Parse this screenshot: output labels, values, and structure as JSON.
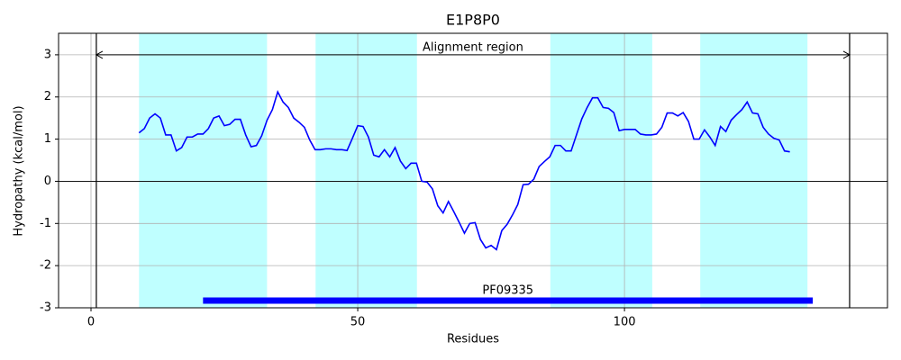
{
  "chart_data": {
    "type": "line",
    "title": "E1P8P0",
    "x_label": "Residues",
    "y_label": "Hydropathy (kcal/mol)",
    "xlim": [
      -6.08,
      149.3
    ],
    "ylim": [
      -3,
      3.51
    ],
    "xticks": [
      0,
      50,
      100
    ],
    "yticks": [
      -3,
      -2,
      -1,
      0,
      1,
      2,
      3
    ],
    "grid": true,
    "x": [
      9,
      10,
      11,
      12,
      13,
      14,
      15,
      16,
      17,
      18,
      19,
      20,
      21,
      22,
      23,
      24,
      25,
      26,
      27,
      28,
      29,
      30,
      31,
      32,
      33,
      34,
      35,
      36,
      37,
      38,
      39,
      40,
      41,
      42,
      43,
      44,
      45,
      46,
      47,
      48,
      49,
      50,
      51,
      52,
      53,
      54,
      55,
      56,
      57,
      58,
      59,
      60,
      61,
      62,
      63,
      64,
      65,
      66,
      67,
      68,
      69,
      70,
      71,
      72,
      73,
      74,
      75,
      76,
      77,
      78,
      79,
      80,
      81,
      82,
      83,
      84,
      85,
      86,
      87,
      88,
      89,
      90,
      91,
      92,
      93,
      94,
      95,
      96,
      97,
      98,
      99,
      100,
      101,
      102,
      103,
      104,
      105,
      106,
      107,
      108,
      109,
      110,
      111,
      112,
      113,
      114,
      115,
      116,
      117,
      118,
      119,
      120,
      121,
      122,
      123,
      124,
      125,
      126,
      127,
      128,
      129,
      130,
      131
    ],
    "values": [
      1.15,
      1.25,
      1.5,
      1.6,
      1.5,
      1.1,
      1.1,
      0.72,
      0.8,
      1.05,
      1.05,
      1.12,
      1.12,
      1.25,
      1.5,
      1.55,
      1.32,
      1.35,
      1.47,
      1.47,
      1.1,
      0.82,
      0.85,
      1.08,
      1.45,
      1.7,
      2.12,
      1.88,
      1.75,
      1.5,
      1.4,
      1.28,
      0.98,
      0.75,
      0.75,
      0.77,
      0.77,
      0.75,
      0.75,
      0.73,
      1.02,
      1.32,
      1.3,
      1.05,
      0.62,
      0.58,
      0.75,
      0.58,
      0.8,
      0.48,
      0.3,
      0.43,
      0.43,
      0.0,
      -0.02,
      -0.18,
      -0.58,
      -0.75,
      -0.48,
      -0.72,
      -0.97,
      -1.23,
      -1.0,
      -0.98,
      -1.38,
      -1.58,
      -1.52,
      -1.62,
      -1.17,
      -1.02,
      -0.8,
      -0.55,
      -0.08,
      -0.07,
      0.05,
      0.35,
      0.47,
      0.58,
      0.85,
      0.85,
      0.72,
      0.72,
      1.1,
      1.48,
      1.75,
      1.98,
      1.98,
      1.75,
      1.73,
      1.63,
      1.2,
      1.23,
      1.23,
      1.23,
      1.12,
      1.1,
      1.1,
      1.12,
      1.28,
      1.62,
      1.62,
      1.55,
      1.63,
      1.42,
      1.0,
      1.0,
      1.22,
      1.05,
      0.85,
      1.3,
      1.18,
      1.45,
      1.58,
      1.7,
      1.88,
      1.62,
      1.6,
      1.28,
      1.12,
      1.02,
      0.98,
      0.72,
      0.7
    ],
    "color": "#0000ff",
    "shaded_regions": [
      [
        9,
        33
      ],
      [
        42.1,
        61.1
      ],
      [
        86.1,
        105.2
      ],
      [
        114.2,
        134.3
      ]
    ],
    "shade_color": "#bfffff",
    "vlines": [
      1,
      142.2
    ],
    "hlines": [
      0
    ],
    "annotation": {
      "text": "Alignment region",
      "x": [
        1,
        142.2
      ],
      "y": 3
    },
    "domain": {
      "label": "PF09335",
      "x": [
        21,
        135.3
      ],
      "y": -2.83,
      "color": "#0000ff"
    }
  }
}
